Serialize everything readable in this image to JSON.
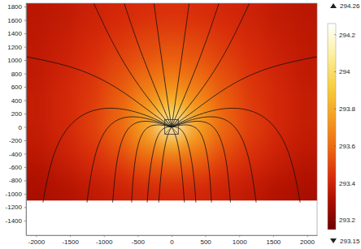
{
  "chart_data": {
    "type": "heatmap",
    "xlim": [
      -2150,
      2150
    ],
    "ylim": [
      -1620,
      1850
    ],
    "xticks": [
      -2000,
      -1500,
      -1000,
      -500,
      0,
      500,
      1000,
      1500,
      2000
    ],
    "yticks": [
      -1400,
      -1200,
      -1000,
      -800,
      -600,
      -400,
      -200,
      0,
      200,
      400,
      600,
      800,
      1000,
      1200,
      1400,
      1600,
      1800
    ],
    "heatmap": {
      "x": [
        -2000,
        -1600,
        -1200,
        -800,
        -400,
        0,
        400,
        800,
        1200,
        1600,
        2000
      ],
      "y": [
        -975,
        -725,
        -475,
        -225,
        25,
        275,
        525,
        775,
        1025,
        1275,
        1525,
        1775
      ],
      "values": [
        [
          293.3,
          293.32,
          293.35,
          293.38,
          293.4,
          293.41,
          293.4,
          293.38,
          293.35,
          293.32,
          293.3
        ],
        [
          293.32,
          293.35,
          293.39,
          293.43,
          293.48,
          293.5,
          293.48,
          293.43,
          293.39,
          293.35,
          293.32
        ],
        [
          293.34,
          293.38,
          293.43,
          293.49,
          293.58,
          293.62,
          293.58,
          293.49,
          293.43,
          293.38,
          293.34
        ],
        [
          293.36,
          293.4,
          293.46,
          293.55,
          293.7,
          293.84,
          293.7,
          293.55,
          293.46,
          293.4,
          293.36
        ],
        [
          293.37,
          293.41,
          293.48,
          293.58,
          293.77,
          294.22,
          293.77,
          293.58,
          293.48,
          293.41,
          293.37
        ],
        [
          293.37,
          293.41,
          293.47,
          293.57,
          293.73,
          293.92,
          293.73,
          293.57,
          293.47,
          293.41,
          293.37
        ],
        [
          293.37,
          293.41,
          293.46,
          293.55,
          293.66,
          293.75,
          293.66,
          293.55,
          293.46,
          293.41,
          293.37
        ],
        [
          293.36,
          293.4,
          293.45,
          293.52,
          293.6,
          293.65,
          293.6,
          293.52,
          293.45,
          293.4,
          293.36
        ],
        [
          293.36,
          293.39,
          293.43,
          293.49,
          293.54,
          293.57,
          293.54,
          293.49,
          293.43,
          293.39,
          293.36
        ],
        [
          293.35,
          293.38,
          293.42,
          293.46,
          293.5,
          293.52,
          293.5,
          293.46,
          293.42,
          293.38,
          293.35
        ],
        [
          293.35,
          293.37,
          293.4,
          293.43,
          293.46,
          293.47,
          293.46,
          293.43,
          293.4,
          293.37,
          293.35
        ],
        [
          293.34,
          293.36,
          293.39,
          293.41,
          293.43,
          293.44,
          293.43,
          293.41,
          293.39,
          293.36,
          293.34
        ]
      ]
    },
    "colorbar": {
      "range": [
        293.15,
        294.26
      ],
      "ticks": [
        293.2,
        293.4,
        293.6,
        293.8,
        294,
        294.2
      ]
    },
    "streamlines": [
      {
        "x": [
          0,
          60,
          130,
          200,
          260
        ],
        "y": [
          0,
          400,
          900,
          1400,
          1850
        ]
      },
      {
        "x": [
          0,
          150,
          330,
          520,
          700
        ],
        "y": [
          0,
          350,
          800,
          1300,
          1850
        ]
      },
      {
        "x": [
          0,
          250,
          550,
          850,
          1150
        ],
        "y": [
          0,
          300,
          700,
          1200,
          1850
        ]
      },
      {
        "x": [
          0,
          350,
          800,
          1400,
          2150
        ],
        "y": [
          0,
          250,
          600,
          900,
          1050
        ]
      },
      {
        "x": [
          0,
          400,
          900,
          1400,
          1750,
          1900
        ],
        "y": [
          0,
          200,
          320,
          200,
          -300,
          -1130
        ]
      },
      {
        "x": [
          0,
          300,
          650,
          950,
          1150,
          1250
        ],
        "y": [
          0,
          120,
          180,
          50,
          -400,
          -1130
        ]
      },
      {
        "x": [
          0,
          250,
          500,
          700,
          820,
          870
        ],
        "y": [
          0,
          80,
          100,
          -50,
          -500,
          -1130
        ]
      },
      {
        "x": [
          0,
          180,
          350,
          480,
          560,
          590
        ],
        "y": [
          0,
          40,
          20,
          -150,
          -600,
          -1130
        ]
      },
      {
        "x": [
          0,
          120,
          230,
          320,
          360
        ],
        "y": [
          0,
          0,
          -150,
          -600,
          -1130
        ]
      },
      {
        "x": [
          0,
          80,
          150,
          190
        ],
        "y": [
          0,
          -150,
          -600,
          -1130
        ]
      },
      {
        "x": [
          0,
          -60,
          -130,
          -200,
          -260
        ],
        "y": [
          0,
          400,
          900,
          1400,
          1850
        ]
      },
      {
        "x": [
          0,
          -150,
          -330,
          -520,
          -700
        ],
        "y": [
          0,
          350,
          800,
          1300,
          1850
        ]
      },
      {
        "x": [
          0,
          -250,
          -550,
          -850,
          -1150
        ],
        "y": [
          0,
          300,
          700,
          1200,
          1850
        ]
      },
      {
        "x": [
          0,
          -350,
          -800,
          -1400,
          -2150
        ],
        "y": [
          0,
          250,
          600,
          900,
          1050
        ]
      },
      {
        "x": [
          0,
          -400,
          -900,
          -1400,
          -1750,
          -1900
        ],
        "y": [
          0,
          200,
          320,
          200,
          -300,
          -1130
        ]
      },
      {
        "x": [
          0,
          -300,
          -650,
          -950,
          -1150,
          -1250
        ],
        "y": [
          0,
          120,
          180,
          50,
          -400,
          -1130
        ]
      },
      {
        "x": [
          0,
          -250,
          -500,
          -700,
          -820,
          -870
        ],
        "y": [
          0,
          80,
          100,
          -50,
          -500,
          -1130
        ]
      },
      {
        "x": [
          0,
          -180,
          -350,
          -480,
          -560,
          -590
        ],
        "y": [
          0,
          40,
          20,
          -150,
          -600,
          -1130
        ]
      },
      {
        "x": [
          0,
          -120,
          -230,
          -320,
          -360
        ],
        "y": [
          0,
          0,
          -150,
          -600,
          -1130
        ]
      },
      {
        "x": [
          0,
          -80,
          -150,
          -190
        ],
        "y": [
          0,
          -150,
          -600,
          -1130
        ]
      }
    ],
    "source": {
      "x": [
        -100,
        100
      ],
      "y": [
        -110,
        110
      ]
    }
  }
}
